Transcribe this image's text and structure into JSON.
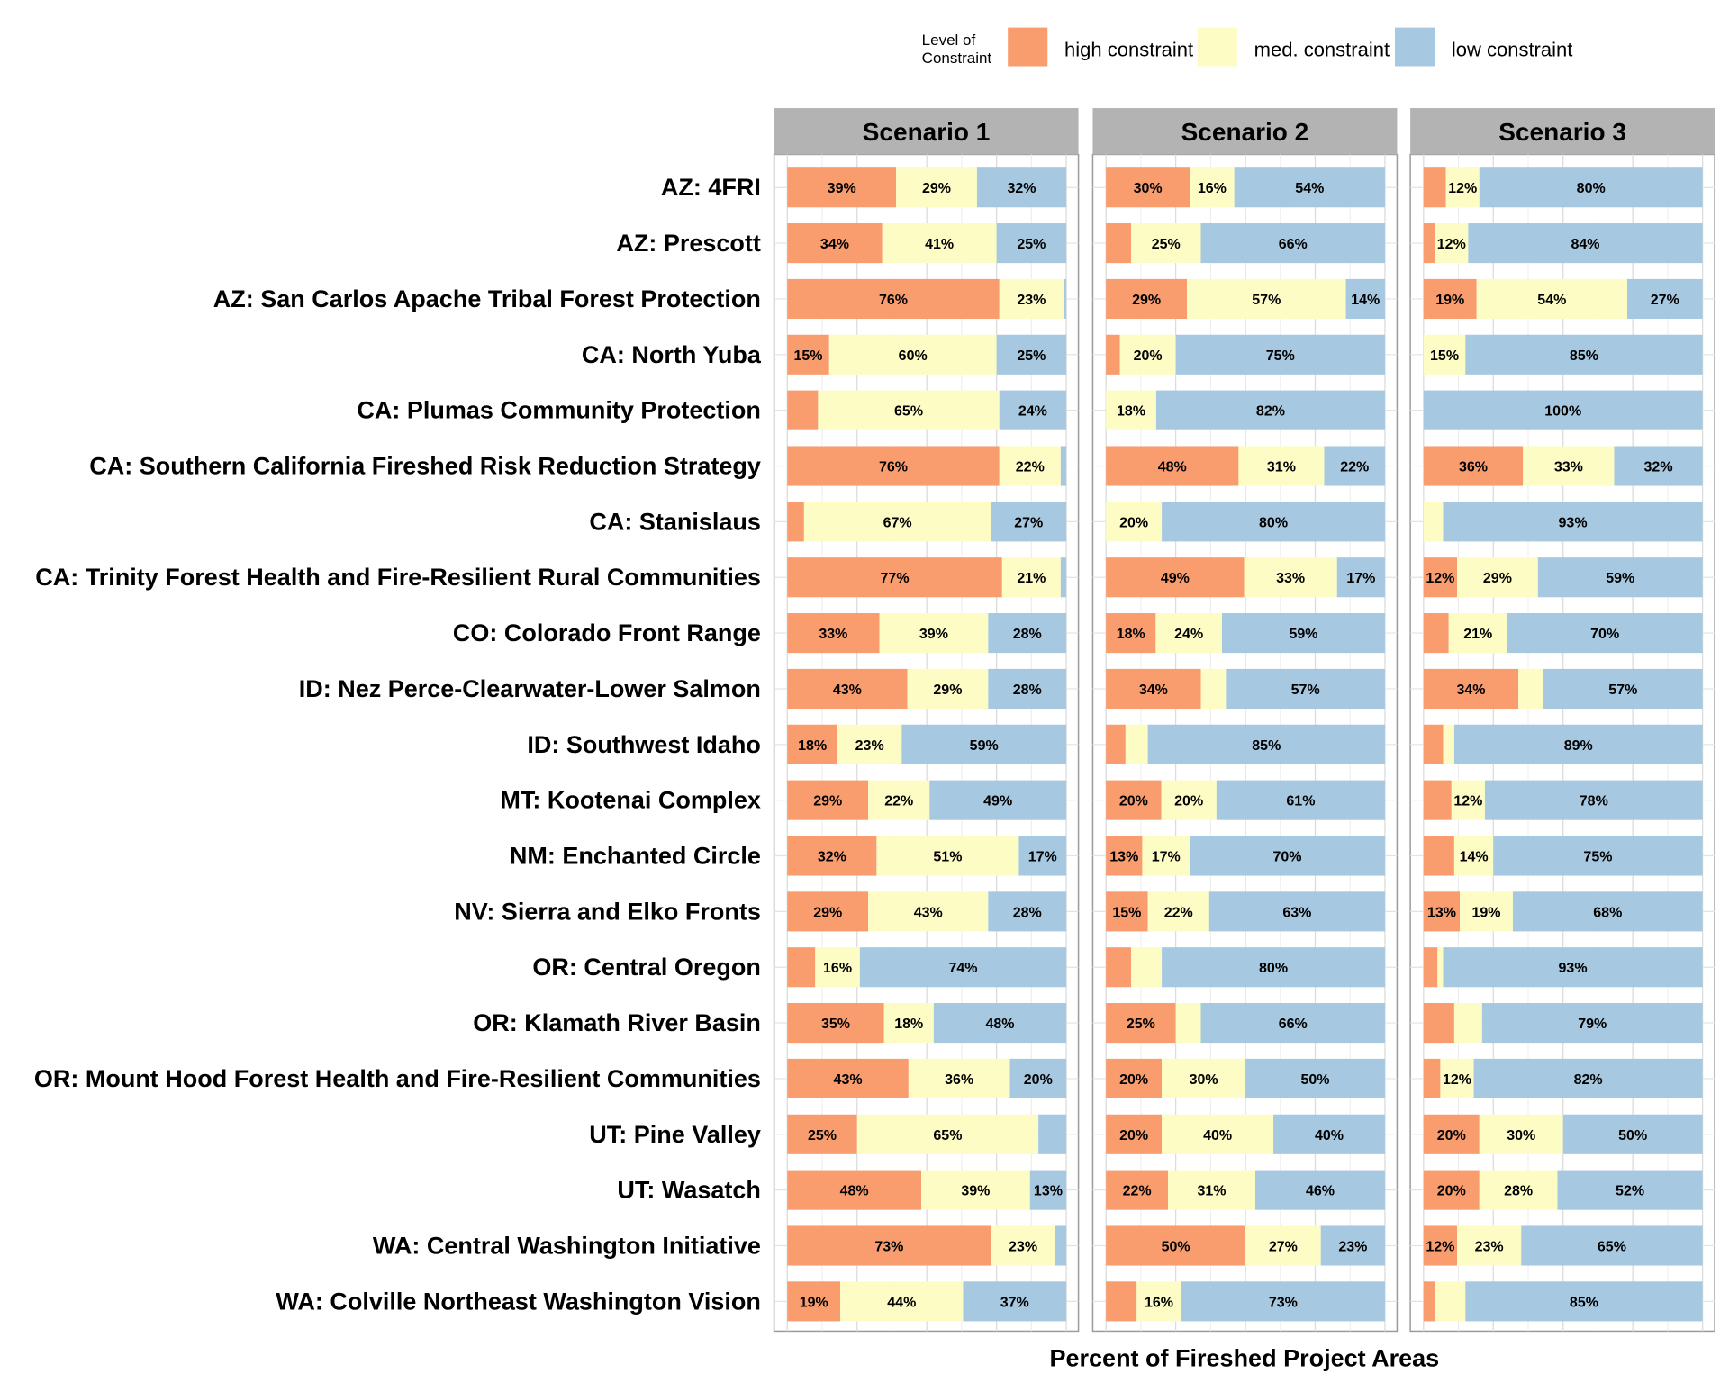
{
  "chart_data": {
    "type": "bar",
    "stacked": true,
    "orientation": "horizontal",
    "xlabel": "Percent of Fireshed Project Areas",
    "legend": {
      "title": "Level of\nConstraint",
      "placement": "top",
      "items": [
        {
          "name": "high constraint",
          "color": "#f99c6e"
        },
        {
          "name": "med. constraint",
          "color": "#fdfcc4"
        },
        {
          "name": "low constraint",
          "color": "#a6c8e0"
        }
      ]
    },
    "grid": true,
    "xlim": [
      0,
      100
    ],
    "panels": [
      "Scenario 1",
      "Scenario 2",
      "Scenario 3"
    ],
    "categories": [
      "AZ: 4FRI",
      "AZ: Prescott",
      "AZ: San Carlos Apache Tribal Forest Protection",
      "CA: North Yuba",
      "CA: Plumas Community Protection",
      "CA: Southern California Fireshed Risk Reduction Strategy",
      "CA: Stanislaus",
      "CA: Trinity Forest Health and Fire-Resilient Rural Communities",
      "CO: Colorado Front Range",
      "ID: Nez Perce-Clearwater-Lower Salmon",
      "ID: Southwest Idaho",
      "MT: Kootenai Complex",
      "NM: Enchanted Circle",
      "NV: Sierra and Elko Fronts",
      "OR: Central Oregon",
      "OR: Klamath River Basin",
      "OR: Mount Hood Forest Health and Fire-Resilient Communities",
      "UT: Pine Valley",
      "UT: Wasatch",
      "WA: Central Washington Initiative",
      "WA: Colville Northeast Washington Vision"
    ],
    "values": [
      [
        [
          39,
          29,
          32
        ],
        [
          30,
          16,
          54
        ],
        [
          8,
          12,
          80
        ]
      ],
      [
        [
          34,
          41,
          25
        ],
        [
          9,
          25,
          66
        ],
        [
          4,
          12,
          84
        ]
      ],
      [
        [
          76,
          23,
          1
        ],
        [
          29,
          57,
          14
        ],
        [
          19,
          54,
          27
        ]
      ],
      [
        [
          15,
          60,
          25
        ],
        [
          5,
          20,
          75
        ],
        [
          0,
          15,
          85
        ]
      ],
      [
        [
          11,
          65,
          24
        ],
        [
          0,
          18,
          82
        ],
        [
          0,
          0,
          100
        ]
      ],
      [
        [
          76,
          22,
          2
        ],
        [
          48,
          31,
          22
        ],
        [
          36,
          33,
          32
        ]
      ],
      [
        [
          6,
          67,
          27
        ],
        [
          0,
          20,
          80
        ],
        [
          0,
          7,
          93
        ]
      ],
      [
        [
          77,
          21,
          2
        ],
        [
          49,
          33,
          17
        ],
        [
          12,
          29,
          59
        ]
      ],
      [
        [
          33,
          39,
          28
        ],
        [
          18,
          24,
          59
        ],
        [
          9,
          21,
          70
        ]
      ],
      [
        [
          43,
          29,
          28
        ],
        [
          34,
          9,
          57
        ],
        [
          34,
          9,
          57
        ]
      ],
      [
        [
          18,
          23,
          59
        ],
        [
          7,
          8,
          85
        ],
        [
          7,
          4,
          89
        ]
      ],
      [
        [
          29,
          22,
          49
        ],
        [
          20,
          20,
          61
        ],
        [
          10,
          12,
          78
        ]
      ],
      [
        [
          32,
          51,
          17
        ],
        [
          13,
          17,
          70
        ],
        [
          11,
          14,
          75
        ]
      ],
      [
        [
          29,
          43,
          28
        ],
        [
          15,
          22,
          63
        ],
        [
          13,
          19,
          68
        ]
      ],
      [
        [
          10,
          16,
          74
        ],
        [
          9,
          11,
          80
        ],
        [
          5,
          2,
          93
        ]
      ],
      [
        [
          35,
          18,
          48
        ],
        [
          25,
          9,
          66
        ],
        [
          11,
          10,
          79
        ]
      ],
      [
        [
          43,
          36,
          20
        ],
        [
          20,
          30,
          50
        ],
        [
          6,
          12,
          82
        ]
      ],
      [
        [
          25,
          65,
          10
        ],
        [
          20,
          40,
          40
        ],
        [
          20,
          30,
          50
        ]
      ],
      [
        [
          48,
          39,
          13
        ],
        [
          22,
          31,
          46
        ],
        [
          20,
          28,
          52
        ]
      ],
      [
        [
          73,
          23,
          4
        ],
        [
          50,
          27,
          23
        ],
        [
          12,
          23,
          65
        ]
      ],
      [
        [
          19,
          44,
          37
        ],
        [
          11,
          16,
          73
        ],
        [
          4,
          11,
          85
        ]
      ]
    ]
  }
}
